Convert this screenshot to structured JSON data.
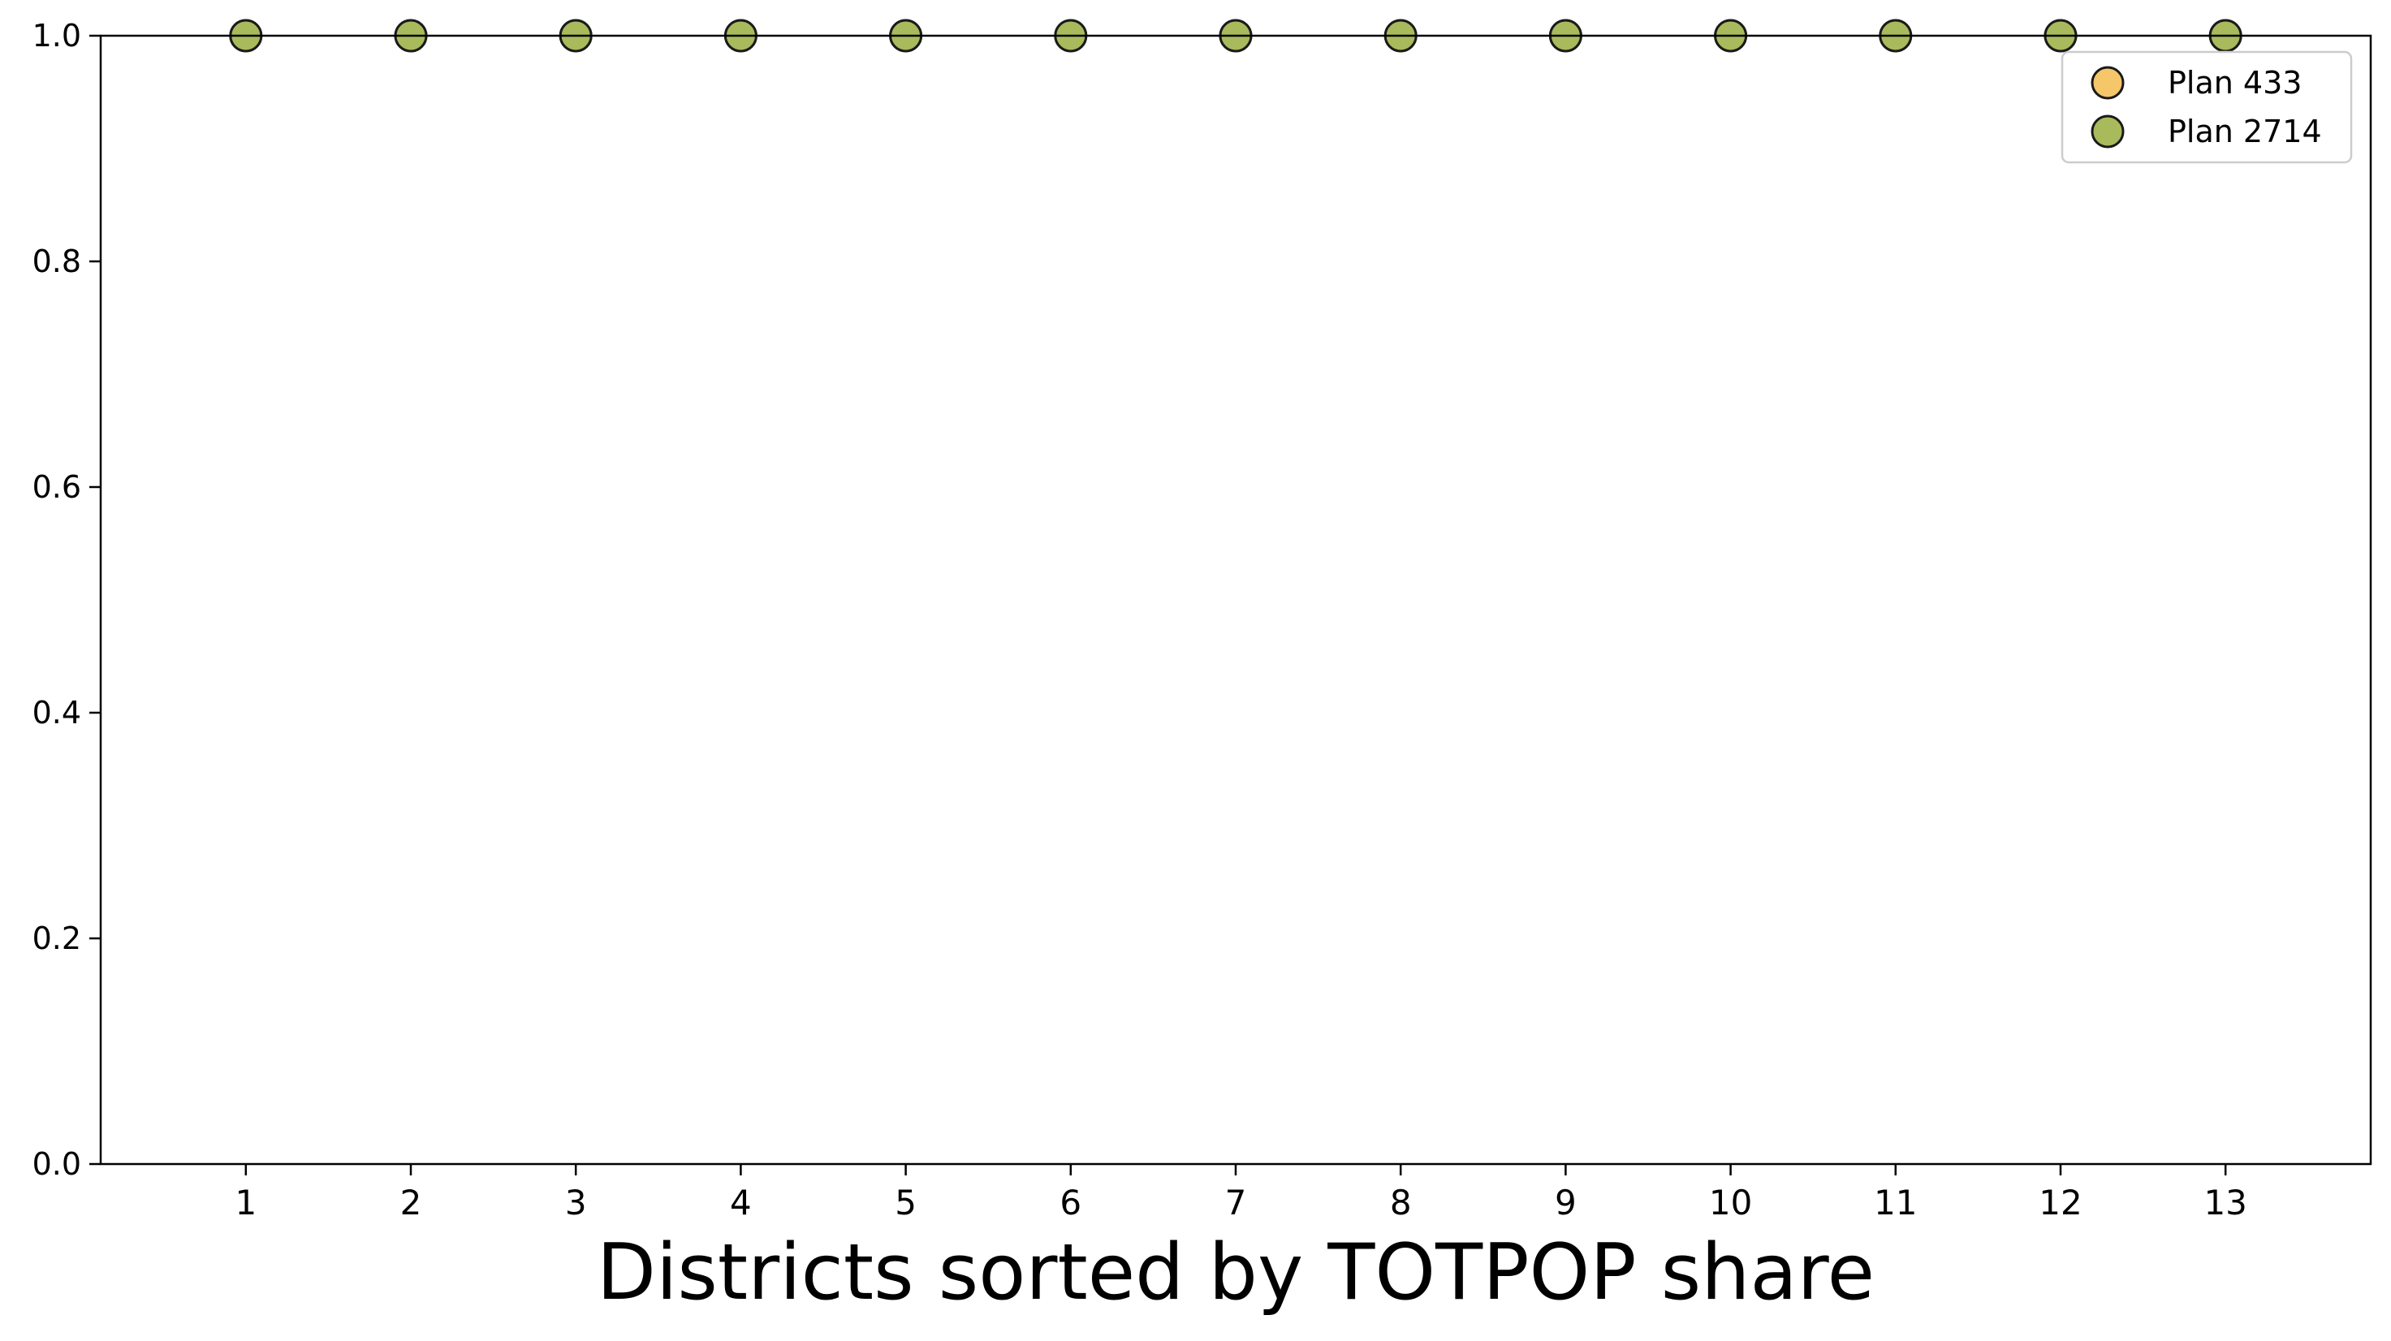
{
  "chart_data": {
    "type": "scatter",
    "title": "",
    "xlabel": "Districts sorted by TOTPOP share",
    "ylabel": "",
    "x": [
      1,
      2,
      3,
      4,
      5,
      6,
      7,
      8,
      9,
      10,
      11,
      12,
      13
    ],
    "xticks": [
      "1",
      "2",
      "3",
      "4",
      "5",
      "6",
      "7",
      "8",
      "9",
      "10",
      "11",
      "12",
      "13"
    ],
    "xlim": [
      0.12,
      13.88
    ],
    "ylim": [
      0.0,
      1.0
    ],
    "yticks": [
      "0.0",
      "0.2",
      "0.4",
      "0.6",
      "0.8",
      "1.0"
    ],
    "grid": false,
    "legend_position": "top-right",
    "series": [
      {
        "name": "Plan 433",
        "color": "#f5c66a",
        "values": [
          1.0,
          1.0,
          1.0,
          1.0,
          1.0,
          1.0,
          1.0,
          1.0,
          1.0,
          1.0,
          1.0,
          1.0,
          1.0
        ]
      },
      {
        "name": "Plan 2714",
        "color": "#a8ba5c",
        "values": [
          1.0,
          1.0,
          1.0,
          1.0,
          1.0,
          1.0,
          1.0,
          1.0,
          1.0,
          1.0,
          1.0,
          1.0,
          1.0
        ]
      }
    ]
  }
}
